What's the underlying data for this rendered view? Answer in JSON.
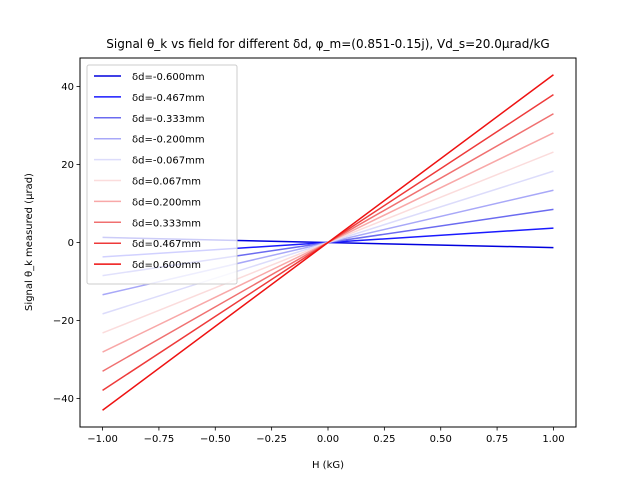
{
  "chart_data": {
    "type": "line",
    "title": "Signal θ_k vs field for different δd, φ_m=(0.851-0.15j), Vd_s=20.0μrad/kG",
    "xlabel": "H (kG)",
    "ylabel": "Signal θ_k measured (μrad)",
    "xlim": [
      -1.1,
      1.1
    ],
    "ylim": [
      -47.3,
      47.3
    ],
    "xticks": [
      -1.0,
      -0.75,
      -0.5,
      -0.25,
      0.0,
      0.25,
      0.5,
      0.75,
      1.0
    ],
    "xtick_labels": [
      "−1.00",
      "−0.75",
      "−0.50",
      "−0.25",
      "0.00",
      "0.25",
      "0.50",
      "0.75",
      "1.00"
    ],
    "yticks": [
      -40,
      -20,
      0,
      20,
      40
    ],
    "ytick_labels": [
      "−40",
      "−20",
      "0",
      "20",
      "40"
    ],
    "grid": false,
    "legend_position": "top-left",
    "x": [
      -1.0,
      1.0
    ],
    "series": [
      {
        "name": "δd=-0.600mm",
        "color": "#0000dd",
        "values": [
          1.3,
          -1.3
        ]
      },
      {
        "name": "δd=-0.467mm",
        "color": "#1a1aff",
        "values": [
          -3.7,
          3.7
        ]
      },
      {
        "name": "δd=-0.333mm",
        "color": "#6b6bf0",
        "values": [
          -8.5,
          8.5
        ]
      },
      {
        "name": "δd=-0.200mm",
        "color": "#a8a8f8",
        "values": [
          -13.4,
          13.4
        ]
      },
      {
        "name": "δd=-0.067mm",
        "color": "#dcdcfb",
        "values": [
          -18.3,
          18.3
        ]
      },
      {
        "name": "δd=0.067mm",
        "color": "#fbdcdc",
        "values": [
          -23.2,
          23.2
        ]
      },
      {
        "name": "δd=0.200mm",
        "color": "#f8a8a8",
        "values": [
          -28.1,
          28.1
        ]
      },
      {
        "name": "δd=0.333mm",
        "color": "#f07070",
        "values": [
          -33.0,
          33.0
        ]
      },
      {
        "name": "δd=0.467mm",
        "color": "#ee3a3a",
        "values": [
          -37.9,
          37.9
        ]
      },
      {
        "name": "δd=0.600mm",
        "color": "#ee1111",
        "values": [
          -43.0,
          43.0
        ]
      }
    ]
  }
}
